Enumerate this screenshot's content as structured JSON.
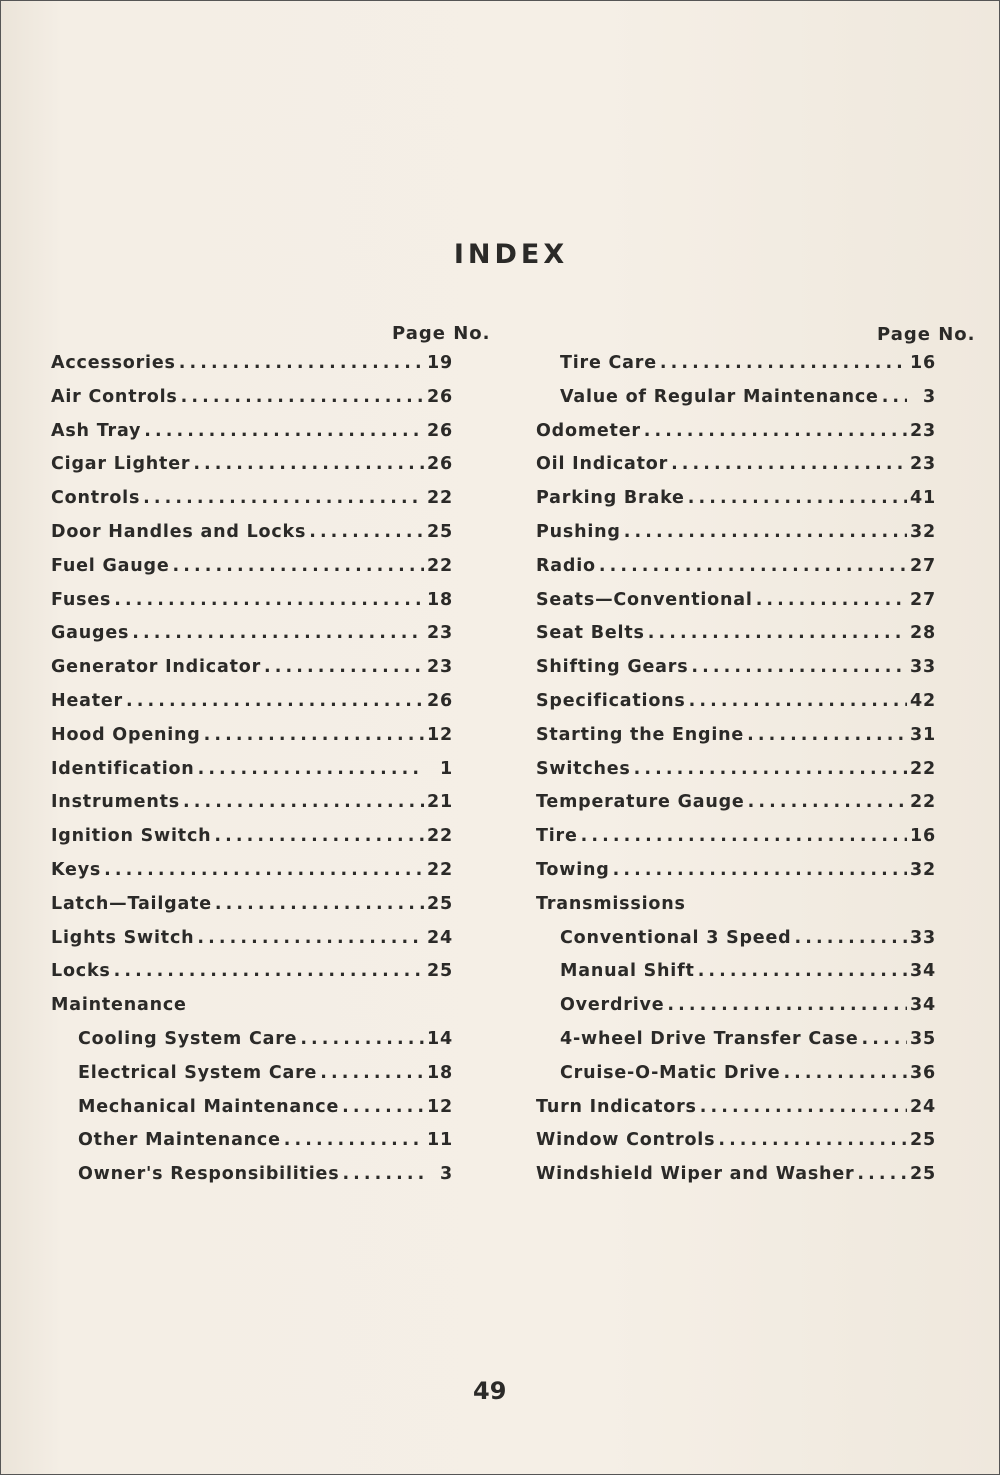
{
  "title": "INDEX",
  "page_no_label": "Page No.",
  "page_number": "49",
  "left": [
    {
      "label": "Accessories",
      "page": "19",
      "level": 0
    },
    {
      "label": "Air Controls",
      "page": "26",
      "level": 0
    },
    {
      "label": "Ash Tray",
      "page": "26",
      "level": 0
    },
    {
      "label": "Cigar Lighter",
      "page": "26",
      "level": 0
    },
    {
      "label": "Controls",
      "page": "22",
      "level": 0
    },
    {
      "label": "Door Handles and Locks",
      "page": "25",
      "level": 0
    },
    {
      "label": "Fuel Gauge",
      "page": "22",
      "level": 0
    },
    {
      "label": "Fuses",
      "page": "18",
      "level": 0
    },
    {
      "label": "Gauges",
      "page": "23",
      "level": 0
    },
    {
      "label": "Generator Indicator",
      "page": "23",
      "level": 0
    },
    {
      "label": "Heater",
      "page": "26",
      "level": 0
    },
    {
      "label": "Hood Opening",
      "page": "12",
      "level": 0
    },
    {
      "label": "Identification",
      "page": "1",
      "level": 0
    },
    {
      "label": "Instruments",
      "page": "21",
      "level": 0
    },
    {
      "label": "Ignition Switch",
      "page": "22",
      "level": 0
    },
    {
      "label": "Keys",
      "page": "22",
      "level": 0
    },
    {
      "label": "Latch—Tailgate",
      "page": "25",
      "level": 0
    },
    {
      "label": "Lights Switch",
      "page": "24",
      "level": 0
    },
    {
      "label": "Locks",
      "page": "25",
      "level": 0
    },
    {
      "label": "Maintenance",
      "page": "",
      "level": 0
    },
    {
      "label": "Cooling System Care",
      "page": "14",
      "level": 1
    },
    {
      "label": "Electrical System Care",
      "page": "18",
      "level": 1
    },
    {
      "label": "Mechanical Maintenance",
      "page": "12",
      "level": 1
    },
    {
      "label": "Other Maintenance",
      "page": "11",
      "level": 1
    },
    {
      "label": "Owner's Responsibilities",
      "page": "3",
      "level": 1
    }
  ],
  "right": [
    {
      "label": "Tire Care",
      "page": "16",
      "level": 1
    },
    {
      "label": "Value of Regular Maintenance",
      "page": "3",
      "level": 1
    },
    {
      "label": "Odometer",
      "page": "23",
      "level": 0
    },
    {
      "label": "Oil Indicator",
      "page": "23",
      "level": 0
    },
    {
      "label": "Parking Brake",
      "page": "41",
      "level": 0
    },
    {
      "label": "Pushing",
      "page": "32",
      "level": 0
    },
    {
      "label": "Radio",
      "page": "27",
      "level": 0
    },
    {
      "label": "Seats—Conventional",
      "page": "27",
      "level": 0
    },
    {
      "label": "Seat Belts",
      "page": "28",
      "level": 0
    },
    {
      "label": "Shifting Gears",
      "page": "33",
      "level": 0
    },
    {
      "label": "Specifications",
      "page": "42",
      "level": 0
    },
    {
      "label": "Starting the Engine",
      "page": "31",
      "level": 0
    },
    {
      "label": "Switches",
      "page": "22",
      "level": 0
    },
    {
      "label": "Temperature Gauge",
      "page": "22",
      "level": 0
    },
    {
      "label": "Tire",
      "page": "16",
      "level": 0
    },
    {
      "label": "Towing",
      "page": "32",
      "level": 0
    },
    {
      "label": "Transmissions",
      "page": "",
      "level": 0
    },
    {
      "label": "Conventional 3 Speed",
      "page": "33",
      "level": 1
    },
    {
      "label": "Manual Shift",
      "page": "34",
      "level": 1
    },
    {
      "label": "Overdrive",
      "page": "34",
      "level": 1
    },
    {
      "label": "4-wheel Drive Transfer Case",
      "page": "35",
      "level": 1
    },
    {
      "label": "Cruise-O-Matic Drive",
      "page": "36",
      "level": 1
    },
    {
      "label": "Turn Indicators",
      "page": "24",
      "level": 0
    },
    {
      "label": "Window Controls",
      "page": "25",
      "level": 0
    },
    {
      "label": "Windshield Wiper and Washer",
      "page": "25",
      "level": 0
    }
  ]
}
